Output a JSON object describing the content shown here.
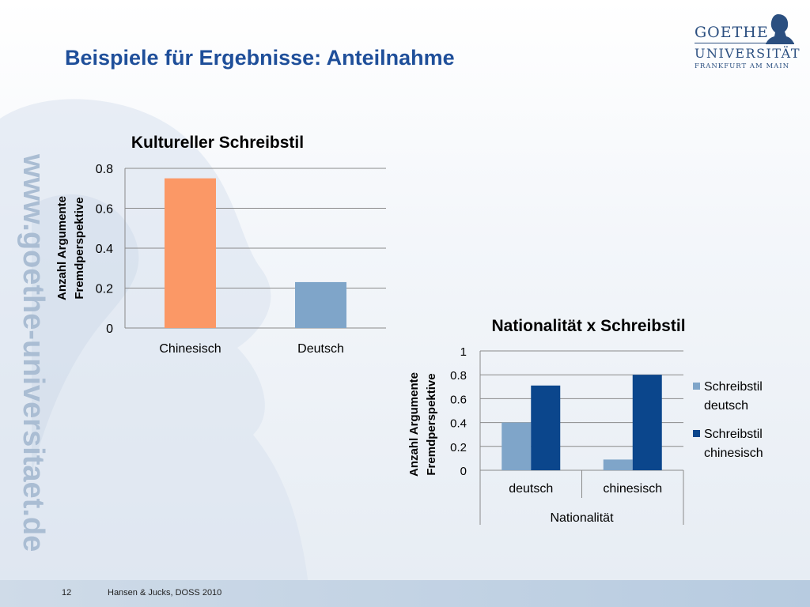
{
  "slide": {
    "title": "Beispiele für Ergebnisse: Anteilnahme",
    "watermark": "www.goethe-universitaet.de",
    "page_number": "12",
    "citation": "Hansen & Jucks, DOSS 2010"
  },
  "logo": {
    "line1": "GOETHE",
    "line2": "UNIVERSITÄT",
    "line3": "FRANKFURT AM MAIN"
  },
  "colors": {
    "title": "#1f4f9a",
    "bar_orange": "#fb9866",
    "bar_lightblue": "#7fa5c9",
    "bar_darkblue": "#0b468c"
  },
  "chart_data": [
    {
      "type": "bar",
      "title": "Kultureller Schreibstil",
      "ylabel": "Anzahl Argumente Fremdperspektive",
      "xlabel": "",
      "categories": [
        "Chinesisch",
        "Deutsch"
      ],
      "values": [
        0.75,
        0.23
      ],
      "bar_colors": [
        "#fb9866",
        "#7fa5c9"
      ],
      "ylim": [
        0,
        0.8
      ],
      "yticks": [
        "0",
        "0.2",
        "0.4",
        "0.6",
        "0.8"
      ],
      "grid": true,
      "legend": "none"
    },
    {
      "type": "bar",
      "title": "Nationalität x Schreibstil",
      "ylabel": "Anzahl Argumente Fremdperspektive",
      "xlabel": "Nationalität",
      "categories": [
        "deutsch",
        "chinesisch"
      ],
      "series": [
        {
          "name": "Schreibstil deutsch",
          "values": [
            0.4,
            0.09
          ],
          "color": "#7fa5c9"
        },
        {
          "name": "Schreibstil chinesisch",
          "values": [
            0.71,
            0.8
          ],
          "color": "#0b468c"
        }
      ],
      "ylim": [
        0,
        1
      ],
      "yticks": [
        "0",
        "0.2",
        "0.4",
        "0.6",
        "0.8",
        "1"
      ],
      "grid": true,
      "legend": "right"
    }
  ]
}
